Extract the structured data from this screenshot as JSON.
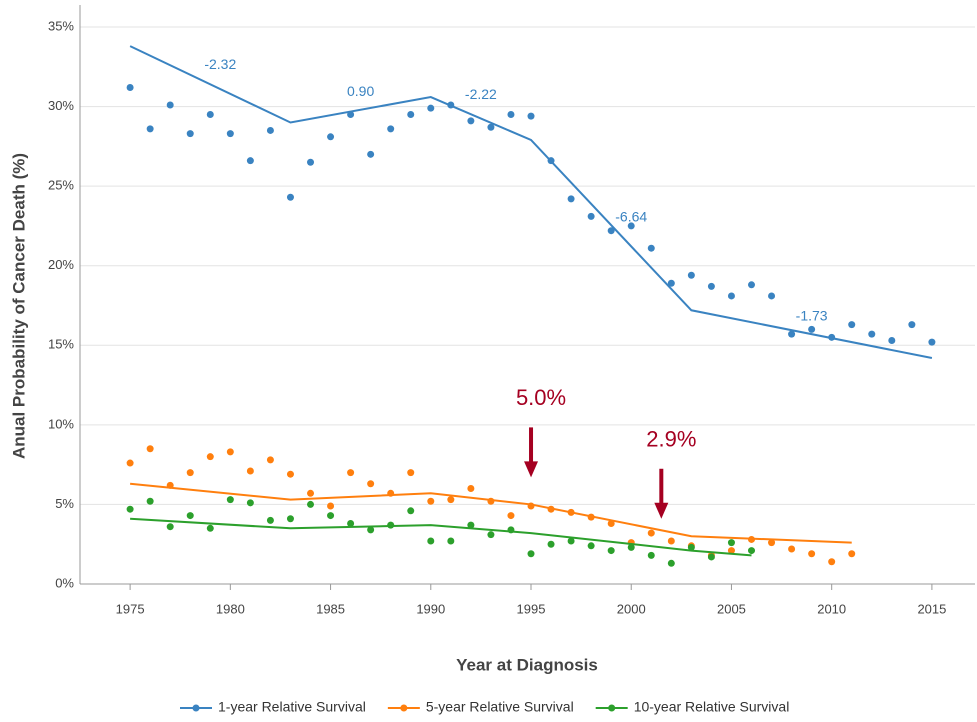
{
  "chart_data": {
    "type": "line",
    "x_label": "Year at Diagnosis",
    "y_label": "Anual Probability of Cancer Death (%)",
    "xlim": [
      1972.5,
      2017.15
    ],
    "xticks": [
      1975,
      1980,
      1985,
      1990,
      1995,
      2000,
      2005,
      2010,
      2015
    ],
    "ylim": [
      0,
      35
    ],
    "yticks": [
      {
        "value": 0,
        "label": "0%"
      },
      {
        "value": 5,
        "label": "5%"
      },
      {
        "value": 10,
        "label": "10%"
      },
      {
        "value": 15,
        "label": "15%"
      },
      {
        "value": 20,
        "label": "20%"
      },
      {
        "value": 25,
        "label": "25%"
      },
      {
        "value": 30,
        "label": "30%"
      },
      {
        "value": 35,
        "label": "35%"
      }
    ],
    "grid": true,
    "legend": "bottom",
    "series": [
      {
        "name": "1-year Relative Survival",
        "color": "#3a83c1",
        "x": [
          1975,
          1976,
          1977,
          1978,
          1979,
          1980,
          1981,
          1982,
          1983,
          1984,
          1985,
          1986,
          1987,
          1988,
          1989,
          1990,
          1991,
          1992,
          1993,
          1994,
          1995,
          1996,
          1997,
          1998,
          1999,
          2000,
          2001,
          2002,
          2003,
          2004,
          2005,
          2006,
          2007,
          2008,
          2009,
          2010,
          2011,
          2012,
          2013,
          2014,
          2015
        ],
        "values": [
          31.2,
          28.6,
          30.1,
          28.3,
          29.5,
          28.3,
          26.6,
          28.5,
          24.3,
          26.5,
          28.1,
          29.5,
          27.0,
          28.6,
          29.5,
          29.9,
          30.1,
          29.1,
          28.7,
          29.5,
          29.4,
          26.6,
          24.2,
          23.1,
          22.2,
          22.5,
          21.1,
          18.9,
          19.4,
          18.7,
          18.1,
          18.8,
          18.1,
          15.7,
          16.0,
          15.5,
          16.3,
          15.7,
          15.3,
          16.3,
          15.2
        ],
        "fit_x": [
          1975,
          1983,
          1990,
          1995,
          2003,
          2015
        ],
        "fit_values": [
          33.8,
          29.0,
          30.6,
          27.9,
          17.2,
          14.2
        ]
      },
      {
        "name": "5-year Relative Survival",
        "color": "#ff7f0e",
        "x": [
          1975,
          1976,
          1977,
          1978,
          1979,
          1980,
          1981,
          1982,
          1983,
          1984,
          1985,
          1986,
          1987,
          1988,
          1989,
          1990,
          1991,
          1992,
          1993,
          1994,
          1995,
          1996,
          1997,
          1998,
          1999,
          2000,
          2001,
          2002,
          2003,
          2004,
          2005,
          2006,
          2007,
          2008,
          2009,
          2010,
          2011
        ],
        "values": [
          7.6,
          8.5,
          6.2,
          7.0,
          8.0,
          8.3,
          7.1,
          7.8,
          6.9,
          5.7,
          4.9,
          7.0,
          6.3,
          5.7,
          7.0,
          5.2,
          5.3,
          6.0,
          5.2,
          4.3,
          4.9,
          4.7,
          4.5,
          4.2,
          3.8,
          2.6,
          3.2,
          2.7,
          2.4,
          1.8,
          2.1,
          2.8,
          2.6,
          2.2,
          1.9,
          1.4,
          1.9
        ],
        "fit_x": [
          1975,
          1983,
          1990,
          1995,
          2003,
          2011
        ],
        "fit_values": [
          6.3,
          5.3,
          5.7,
          5.0,
          3.0,
          2.6
        ]
      },
      {
        "name": "10-year Relative Survival",
        "color": "#2ca02c",
        "x": [
          1975,
          1976,
          1977,
          1978,
          1979,
          1980,
          1981,
          1982,
          1983,
          1984,
          1985,
          1986,
          1987,
          1988,
          1989,
          1990,
          1991,
          1992,
          1993,
          1994,
          1995,
          1996,
          1997,
          1998,
          1999,
          2000,
          2001,
          2002,
          2003,
          2004,
          2005,
          2006
        ],
        "values": [
          4.7,
          5.2,
          3.6,
          4.3,
          3.5,
          5.3,
          5.1,
          4.0,
          4.1,
          5.0,
          4.3,
          3.8,
          3.4,
          3.7,
          4.6,
          2.7,
          2.7,
          3.7,
          3.1,
          3.4,
          1.9,
          2.5,
          2.7,
          2.4,
          2.1,
          2.3,
          1.8,
          1.3,
          2.3,
          1.7,
          2.6,
          2.1
        ],
        "fit_x": [
          1975,
          1983,
          1990,
          1995,
          2003,
          2006
        ],
        "fit_values": [
          4.1,
          3.5,
          3.7,
          3.2,
          2.1,
          1.8
        ]
      }
    ],
    "annotations": [
      {
        "text": "-2.32",
        "x": 1979.5,
        "y": 32.6,
        "color": "#3a83c1"
      },
      {
        "text": "0.90",
        "x": 1986.5,
        "y": 30.9,
        "color": "#3a83c1"
      },
      {
        "text": "-2.22",
        "x": 1992.5,
        "y": 30.7,
        "color": "#3a83c1"
      },
      {
        "text": "-6.64",
        "x": 2000,
        "y": 23.0,
        "color": "#3a83c1"
      },
      {
        "text": "-1.73",
        "x": 2009,
        "y": 16.8,
        "color": "#3a83c1"
      },
      {
        "text": "5.0%",
        "x": 1995.5,
        "y": 11.6,
        "color": "#a50021",
        "arrow": true
      },
      {
        "text": "2.9%",
        "x": 2002,
        "y": 9.0,
        "color": "#a50021",
        "arrow": true
      }
    ]
  }
}
